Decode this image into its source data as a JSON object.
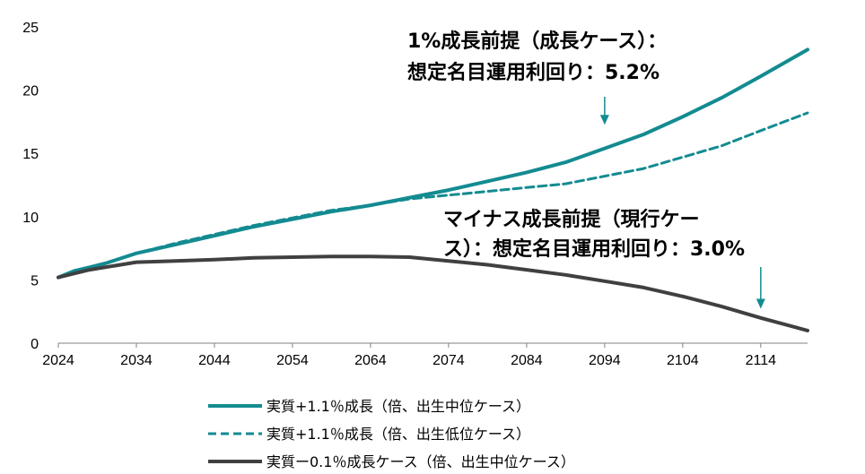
{
  "chart_data": {
    "type": "line",
    "title": "",
    "xlabel": "",
    "ylabel": "",
    "xlim": [
      2024,
      2120
    ],
    "ylim": [
      0,
      25
    ],
    "x_ticks": [
      "2024",
      "2034",
      "2044",
      "2054",
      "2064",
      "2074",
      "2084",
      "2094",
      "2104",
      "2114"
    ],
    "y_ticks": [
      "0",
      "5",
      "10",
      "15",
      "20",
      "25"
    ],
    "grid": false,
    "legend_position": "bottom",
    "series": [
      {
        "name": "実質+1.1％成長（倍、出生中位ケース）",
        "color": "#138B91",
        "style": "solid",
        "x": [
          2024,
          2026,
          2028,
          2030,
          2034,
          2039,
          2044,
          2049,
          2054,
          2059,
          2064,
          2069,
          2074,
          2079,
          2084,
          2089,
          2094,
          2099,
          2104,
          2109,
          2114,
          2120
        ],
        "y": [
          5.2,
          5.7,
          6.0,
          6.3,
          7.1,
          7.8,
          8.5,
          9.2,
          9.8,
          10.4,
          10.9,
          11.5,
          12.1,
          12.8,
          13.5,
          14.3,
          15.4,
          16.5,
          17.9,
          19.4,
          21.1,
          23.2
        ]
      },
      {
        "name": "実質+1.1％成長（倍、出生低位ケース）",
        "color": "#138B91",
        "style": "dashed",
        "x": [
          2024,
          2026,
          2028,
          2030,
          2034,
          2039,
          2044,
          2049,
          2054,
          2059,
          2064,
          2069,
          2074,
          2079,
          2084,
          2089,
          2094,
          2099,
          2104,
          2109,
          2114,
          2120
        ],
        "y": [
          5.2,
          5.7,
          6.0,
          6.3,
          7.1,
          7.9,
          8.6,
          9.3,
          9.9,
          10.5,
          10.9,
          11.4,
          11.7,
          12.0,
          12.3,
          12.6,
          13.2,
          13.8,
          14.7,
          15.6,
          16.8,
          18.2
        ]
      },
      {
        "name": "実質ー0.1％成長ケース（倍、出生中位ケース）",
        "color": "#404040",
        "style": "solid",
        "x": [
          2024,
          2026,
          2028,
          2034,
          2039,
          2044,
          2049,
          2054,
          2059,
          2064,
          2069,
          2074,
          2079,
          2084,
          2089,
          2094,
          2099,
          2104,
          2109,
          2114,
          2120
        ],
        "y": [
          5.2,
          5.5,
          5.8,
          6.4,
          6.5,
          6.6,
          6.75,
          6.8,
          6.85,
          6.85,
          6.8,
          6.5,
          6.2,
          5.8,
          5.4,
          4.9,
          4.4,
          3.7,
          2.9,
          2.0,
          1.0
        ]
      }
    ],
    "annotations": [
      {
        "lines": [
          "1%成長前提（成長ケース）：",
          "想定名目運用利回り：5.2%"
        ],
        "arrow_from": [
          2094,
          16.7
        ],
        "arrow_to": [
          2094,
          16.7
        ]
      },
      {
        "lines": [
          "マイナス成長前提（現行ケー",
          "ス）：想定名目運用利回り：3.0%"
        ],
        "arrow_from": [
          2114,
          2.3
        ],
        "arrow_to": [
          2114,
          2.3
        ]
      }
    ]
  }
}
